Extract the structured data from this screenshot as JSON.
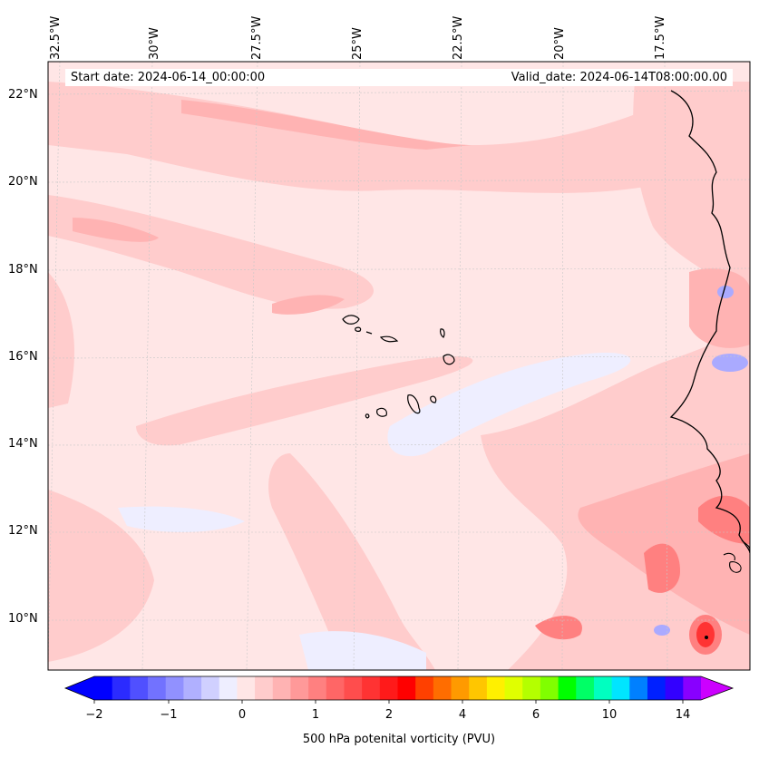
{
  "map": {
    "start_date_label": "Start date: 2024-06-14_00:00:00",
    "valid_date_label": "Valid_date: 2024-06-14T08:00:00.00",
    "longitude_labels": [
      "32.5°W",
      "30°W",
      "27.5°W",
      "25°W",
      "22.5°W",
      "20°W",
      "17.5°W"
    ],
    "latitude_labels": [
      "22°N",
      "20°N",
      "18°N",
      "16°N",
      "14°N",
      "12°N",
      "10°N"
    ],
    "field": "500 hPa potential vorticity",
    "colors": {
      "base": "#ffe6e6",
      "light_pink": "#ffcccc",
      "medium_pink": "#ffb3b3",
      "salmon": "#ff8080",
      "red": "#ff3333",
      "neg_light": "#eeeeff",
      "neg_medium": "#aaaaff",
      "coast": "#000000"
    }
  },
  "colorbar": {
    "label": "500 hPa potenital vorticity (PVU)",
    "tick_labels": [
      "−2",
      "−1",
      "0",
      "1",
      "2",
      "4",
      "6",
      "10",
      "14"
    ],
    "colors": [
      "#0000ff",
      "#2b2bff",
      "#5050ff",
      "#7272ff",
      "#9191ff",
      "#b0b0ff",
      "#d0d0ff",
      "#eeeeff",
      "#ffe6e6",
      "#ffcccc",
      "#ffb3b3",
      "#ff9999",
      "#ff8080",
      "#ff6666",
      "#ff4d4d",
      "#ff3333",
      "#ff1a1a",
      "#ff0000",
      "#ff4000",
      "#ff6d00",
      "#ff9a00",
      "#ffc600",
      "#fff000",
      "#e0ff00",
      "#b4ff00",
      "#80ff00",
      "#00ff00",
      "#00ff66",
      "#00ffc0",
      "#00e5ff",
      "#0080ff",
      "#0020ff",
      "#3300ff",
      "#8800ff"
    ],
    "under_color": "#0000ff",
    "over_color": "#cc00ff"
  }
}
